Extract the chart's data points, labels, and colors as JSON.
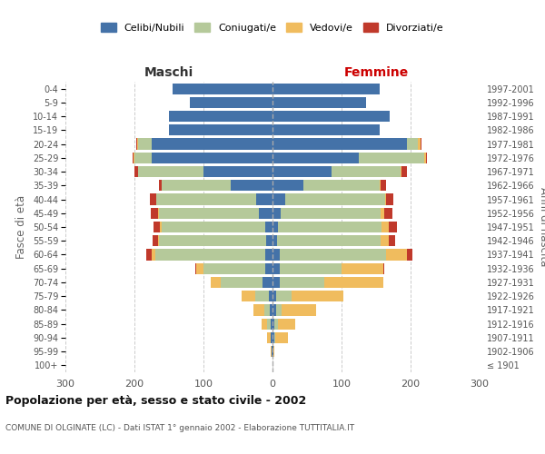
{
  "age_groups": [
    "100+",
    "95-99",
    "90-94",
    "85-89",
    "80-84",
    "75-79",
    "70-74",
    "65-69",
    "60-64",
    "55-59",
    "50-54",
    "45-49",
    "40-44",
    "35-39",
    "30-34",
    "25-29",
    "20-24",
    "15-19",
    "10-14",
    "5-9",
    "0-4"
  ],
  "birth_years": [
    "≤ 1901",
    "1902-1906",
    "1907-1911",
    "1912-1916",
    "1917-1921",
    "1922-1926",
    "1927-1931",
    "1932-1936",
    "1937-1941",
    "1942-1946",
    "1947-1951",
    "1952-1956",
    "1957-1961",
    "1962-1966",
    "1967-1971",
    "1972-1976",
    "1977-1981",
    "1982-1986",
    "1987-1991",
    "1992-1996",
    "1997-2001"
  ],
  "maschi": {
    "celibi": [
      0,
      1,
      2,
      3,
      4,
      5,
      15,
      10,
      10,
      9,
      11,
      20,
      24,
      60,
      100,
      175,
      175,
      150,
      150,
      120,
      145
    ],
    "coniugati": [
      0,
      0,
      1,
      5,
      8,
      20,
      60,
      90,
      160,
      155,
      150,
      145,
      145,
      100,
      95,
      25,
      20,
      0,
      0,
      0,
      0
    ],
    "vedovi": [
      0,
      1,
      5,
      8,
      15,
      20,
      15,
      10,
      5,
      2,
      2,
      1,
      0,
      0,
      0,
      1,
      1,
      0,
      0,
      0,
      0
    ],
    "divorziati": [
      0,
      0,
      0,
      0,
      0,
      0,
      0,
      2,
      8,
      8,
      10,
      10,
      8,
      5,
      5,
      2,
      1,
      0,
      0,
      0,
      0
    ]
  },
  "femmine": {
    "nubili": [
      0,
      1,
      2,
      3,
      5,
      5,
      10,
      10,
      10,
      7,
      8,
      12,
      18,
      45,
      85,
      125,
      195,
      155,
      170,
      135,
      155
    ],
    "coniugate": [
      0,
      0,
      2,
      5,
      8,
      22,
      65,
      90,
      155,
      150,
      150,
      145,
      145,
      110,
      100,
      95,
      15,
      0,
      0,
      0,
      0
    ],
    "vedove": [
      0,
      2,
      18,
      25,
      50,
      75,
      85,
      60,
      30,
      12,
      10,
      5,
      2,
      2,
      2,
      2,
      5,
      0,
      0,
      0,
      0
    ],
    "divorziate": [
      0,
      0,
      0,
      0,
      0,
      0,
      0,
      2,
      8,
      8,
      12,
      12,
      10,
      8,
      8,
      2,
      1,
      0,
      0,
      0,
      0
    ]
  },
  "colors": {
    "celibi": "#4472a8",
    "coniugati": "#b5c99a",
    "vedovi": "#f0bc5e",
    "divorziati": "#c0392b"
  },
  "xlim": 300,
  "title": "Popolazione per età, sesso e stato civile - 2002",
  "subtitle": "COMUNE DI OLGINATE (LC) - Dati ISTAT 1° gennaio 2002 - Elaborazione TUTTITALIA.IT",
  "ylabel_left": "Fasce di età",
  "ylabel_right": "Anni di nascita",
  "xlabel_left": "Maschi",
  "xlabel_right": "Femmine",
  "legend_labels": [
    "Celibi/Nubili",
    "Coniugati/e",
    "Vedovi/e",
    "Divorziati/e"
  ],
  "background_color": "#ffffff",
  "grid_color": "#cccccc",
  "maschi_color": "#333333",
  "femmine_color": "#cc0000"
}
